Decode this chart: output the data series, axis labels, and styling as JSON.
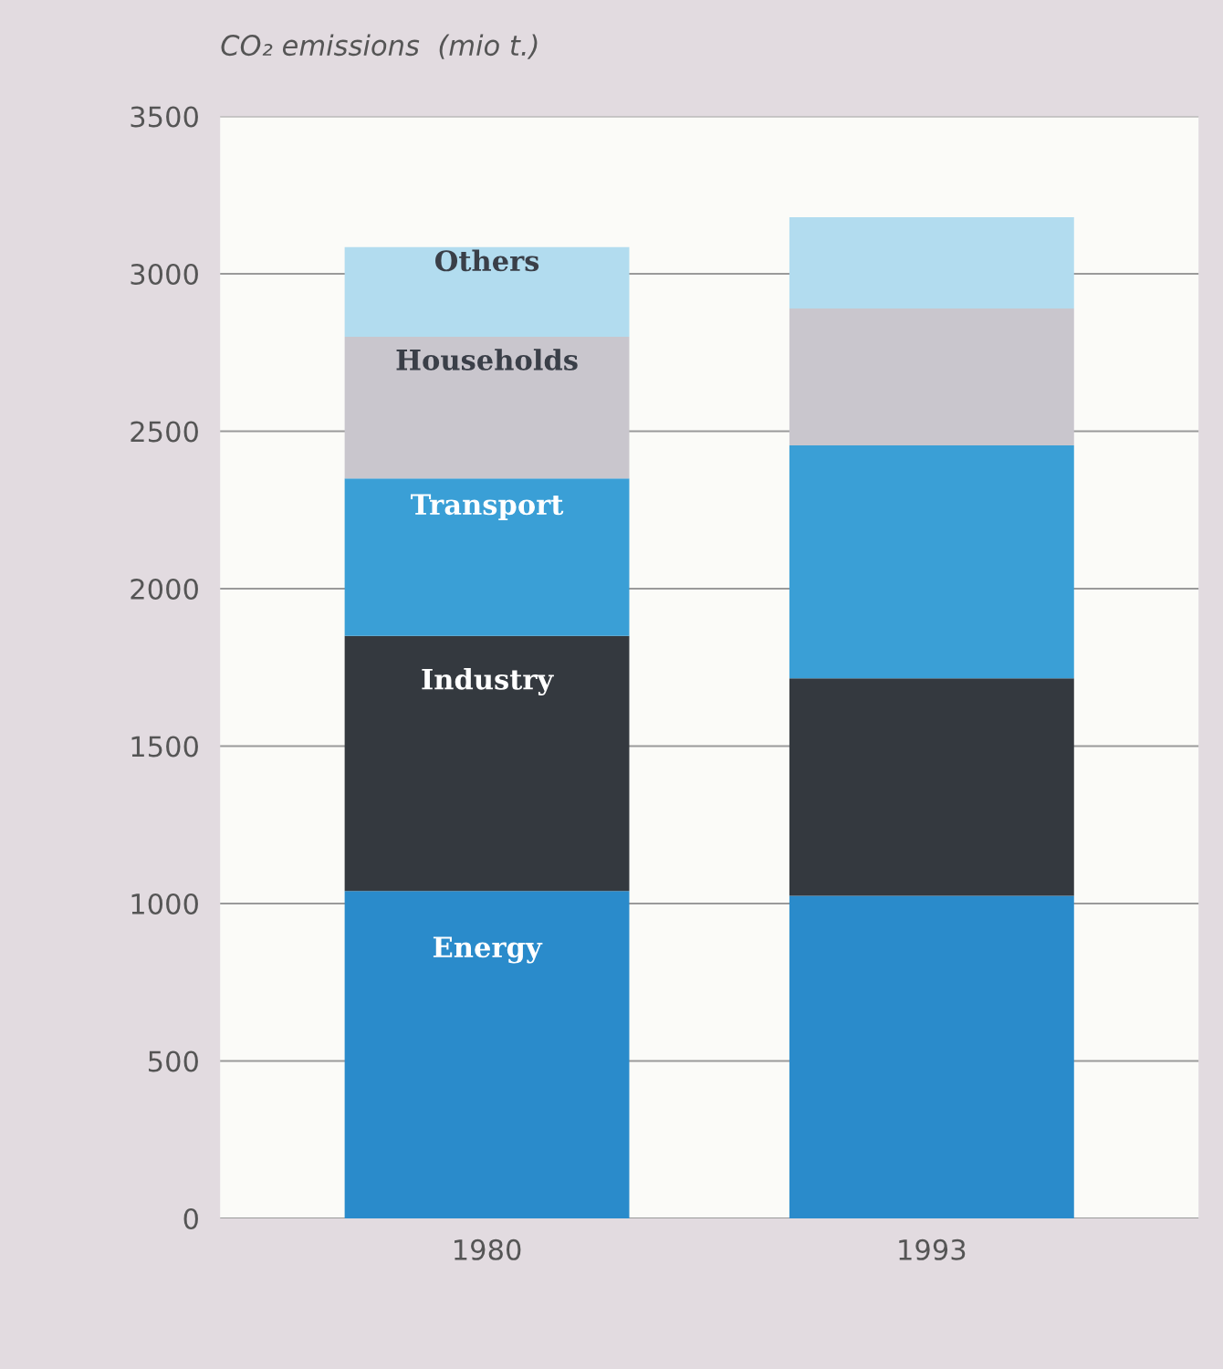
{
  "chart_data": {
    "type": "bar",
    "stacked": true,
    "ylabel": "CO₂ emissions  (mio t.)",
    "categories": [
      "1980",
      "1993"
    ],
    "series": [
      {
        "name": "Energy",
        "color": "#2a8bcb",
        "values": [
          1040,
          1025
        ]
      },
      {
        "name": "Industry",
        "color": "#34393f",
        "values": [
          810,
          690
        ]
      },
      {
        "name": "Transport",
        "color": "#3a9fd6",
        "values": [
          500,
          740
        ]
      },
      {
        "name": "Households",
        "color": "#c9c6cd",
        "values": [
          450,
          435
        ]
      },
      {
        "name": "Others",
        "color": "#b2dcef",
        "values": [
          285,
          290
        ]
      }
    ],
    "ylim": [
      0,
      3500
    ],
    "yticks": [
      0,
      500,
      1000,
      1500,
      2000,
      2500,
      3000,
      3500
    ],
    "grid": "y",
    "legend": false
  }
}
